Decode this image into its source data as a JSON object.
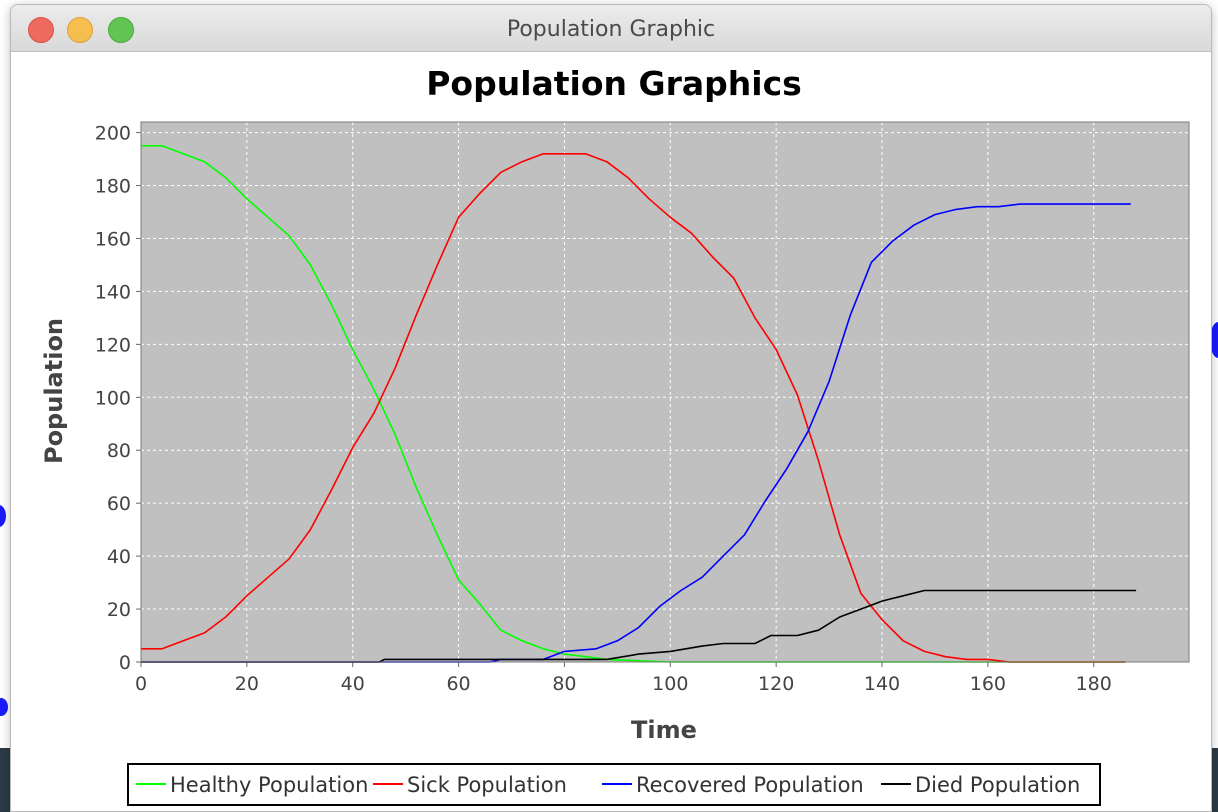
{
  "window": {
    "title": "Population Graphic"
  },
  "colors": {
    "plot_background": "#c0c0c0",
    "grid": "#ffffff",
    "healthy": "#00ff00",
    "sick": "#ff0000",
    "recovered": "#0000ff",
    "died": "#000000"
  },
  "chart_data": {
    "type": "line",
    "title": "Population Graphics",
    "xlabel": "Time",
    "ylabel": "Population",
    "xlim": [
      0,
      198
    ],
    "ylim": [
      0,
      204
    ],
    "xticks": [
      0,
      20,
      40,
      60,
      80,
      100,
      120,
      140,
      160,
      180
    ],
    "yticks": [
      0,
      20,
      40,
      60,
      80,
      100,
      120,
      140,
      160,
      180,
      200
    ],
    "grid": true,
    "legend_position": "bottom",
    "series": [
      {
        "name": "Healthy Population",
        "color": "#00ff00",
        "x": [
          0,
          4,
          12,
          16,
          20,
          28,
          32,
          36,
          40,
          44,
          48,
          52,
          56,
          60,
          64,
          68,
          72,
          76,
          80,
          84,
          88,
          100,
          120,
          140,
          160,
          170,
          180,
          186
        ],
        "y": [
          195,
          195,
          189,
          183,
          175,
          161,
          150,
          135,
          118,
          103,
          86,
          66,
          48,
          31,
          22,
          12,
          8,
          5,
          3,
          2,
          1,
          0,
          0,
          0,
          0,
          0,
          0,
          0
        ]
      },
      {
        "name": "Sick Population",
        "color": "#ff0000",
        "x": [
          0,
          4,
          8,
          12,
          16,
          20,
          24,
          28,
          32,
          36,
          40,
          44,
          48,
          52,
          56,
          60,
          64,
          68,
          72,
          76,
          80,
          84,
          88,
          92,
          96,
          100,
          104,
          108,
          112,
          116,
          120,
          124,
          128,
          132,
          136,
          140,
          144,
          148,
          152,
          156,
          160,
          164,
          168,
          172,
          176,
          180,
          186
        ],
        "y": [
          5,
          5,
          8,
          11,
          17,
          25,
          32,
          39,
          50,
          65,
          81,
          94,
          111,
          131,
          150,
          168,
          177,
          185,
          189,
          192,
          192,
          192,
          189,
          183,
          175,
          168,
          162,
          153,
          145,
          130,
          118,
          101,
          76,
          48,
          26,
          16,
          8,
          4,
          2,
          1,
          1,
          0,
          0,
          0,
          0,
          0,
          0
        ]
      },
      {
        "name": "Recovered Population",
        "color": "#0000ff",
        "x": [
          0,
          20,
          40,
          60,
          66,
          68,
          76,
          80,
          86,
          90,
          94,
          98,
          102,
          106,
          110,
          114,
          118,
          122,
          126,
          130,
          134,
          138,
          142,
          146,
          150,
          154,
          158,
          162,
          166,
          170,
          175,
          180,
          187
        ],
        "y": [
          0,
          0,
          0,
          0,
          0,
          1,
          1,
          4,
          5,
          8,
          13,
          21,
          27,
          32,
          40,
          48,
          61,
          73,
          87,
          106,
          131,
          151,
          159,
          165,
          169,
          171,
          172,
          172,
          173,
          173,
          173,
          173,
          173
        ]
      },
      {
        "name": "Died Population",
        "color": "#000000",
        "x": [
          0,
          20,
          40,
          45,
          46,
          60,
          80,
          88,
          94,
          100,
          106,
          110,
          116,
          119,
          124,
          128,
          132,
          136,
          140,
          144,
          148,
          152,
          160,
          170,
          180,
          188
        ],
        "y": [
          0,
          0,
          0,
          0,
          1,
          1,
          1,
          1,
          3,
          4,
          6,
          7,
          7,
          10,
          10,
          12,
          17,
          20,
          23,
          25,
          27,
          27,
          27,
          27,
          27,
          27
        ]
      }
    ]
  }
}
